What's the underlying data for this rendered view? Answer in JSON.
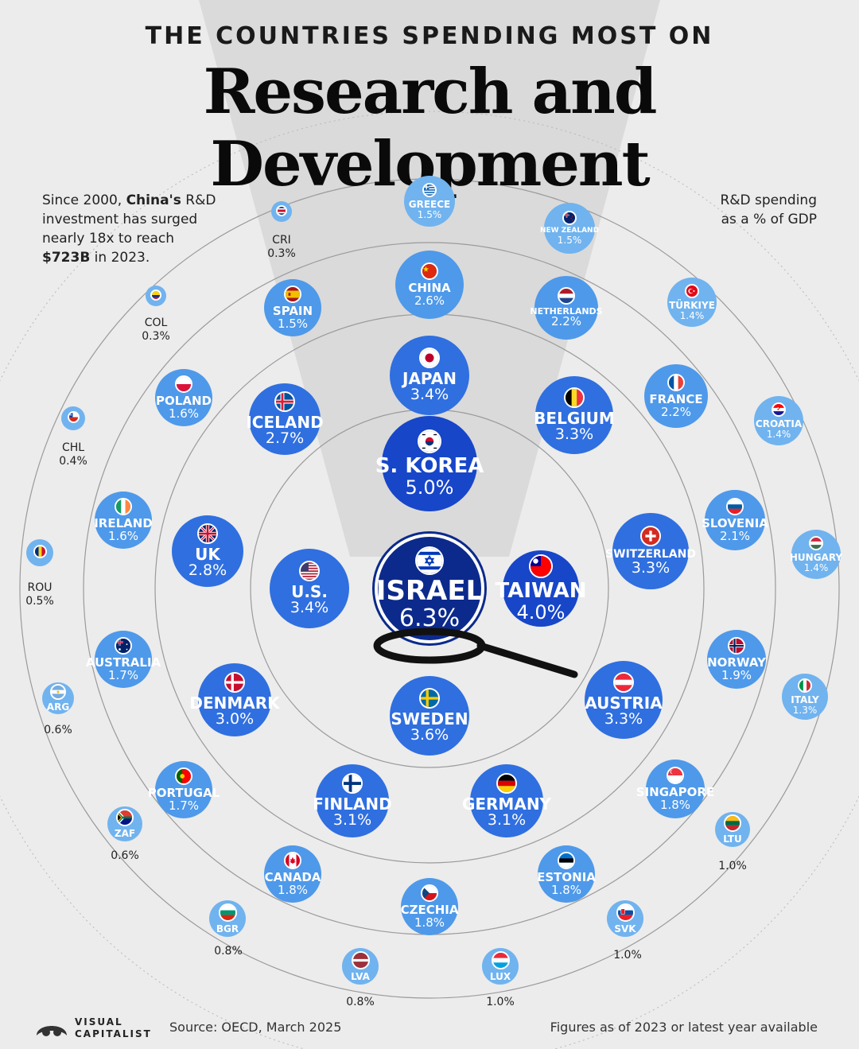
{
  "header": {
    "supertitle": "THE COUNTRIES SPENDING MOST ON",
    "title": "Research and Development"
  },
  "note": {
    "line1a": "Since 2000, ",
    "line1b": "China's",
    "line1c": " R&D",
    "line2": "investment has surged",
    "line3": "nearly 18x to reach",
    "line4a": "$723B",
    "line4b": " in 2023."
  },
  "legend": {
    "line1": "R&D spending",
    "line2": "as a % of GDP"
  },
  "footer": {
    "logo_top": "VISUAL",
    "logo_bottom": "CAPITALIST",
    "source": "Source: OECD, March 2025",
    "figures": "Figures as of 2023 or latest year available"
  },
  "colors": {
    "tier1": "#0c2a8c",
    "tier2": "#1746c9",
    "tier3": "#2f6fe0",
    "tier4": "#4e99ea",
    "tier5": "#70b3ef",
    "background": "#ececec"
  },
  "chart_data": {
    "type": "bubble-radial",
    "title": "Research and Development",
    "unit": "R&D spending as a % of GDP",
    "data": [
      {
        "name": "ISRAEL",
        "value": "6.3%",
        "pct": 6.3,
        "flag": "israel-flag-icon"
      },
      {
        "name": "S. KOREA",
        "value": "5.0%",
        "pct": 5.0,
        "flag": "south-korea-flag-icon"
      },
      {
        "name": "TAIWAN",
        "value": "4.0%",
        "pct": 4.0,
        "flag": "taiwan-flag-icon"
      },
      {
        "name": "U.S.",
        "value": "3.4%",
        "pct": 3.4,
        "flag": "usa-flag-icon"
      },
      {
        "name": "JAPAN",
        "value": "3.4%",
        "pct": 3.4,
        "flag": "japan-flag-icon"
      },
      {
        "name": "SWEDEN",
        "value": "3.6%",
        "pct": 3.6,
        "flag": "sweden-flag-icon"
      },
      {
        "name": "BELGIUM",
        "value": "3.3%",
        "pct": 3.3,
        "flag": "belgium-flag-icon"
      },
      {
        "name": "SWITZERLAND",
        "value": "3.3%",
        "pct": 3.3,
        "flag": "switzerland-flag-icon"
      },
      {
        "name": "AUSTRIA",
        "value": "3.3%",
        "pct": 3.3,
        "flag": "austria-flag-icon"
      },
      {
        "name": "GERMANY",
        "value": "3.1%",
        "pct": 3.1,
        "flag": "germany-flag-icon"
      },
      {
        "name": "FINLAND",
        "value": "3.1%",
        "pct": 3.1,
        "flag": "finland-flag-icon"
      },
      {
        "name": "DENMARK",
        "value": "3.0%",
        "pct": 3.0,
        "flag": "denmark-flag-icon"
      },
      {
        "name": "UK",
        "value": "2.8%",
        "pct": 2.8,
        "flag": "uk-flag-icon"
      },
      {
        "name": "ICELAND",
        "value": "2.7%",
        "pct": 2.7,
        "flag": "iceland-flag-icon"
      },
      {
        "name": "CHINA",
        "value": "2.6%",
        "pct": 2.6,
        "flag": "china-flag-icon"
      },
      {
        "name": "NETHERLANDS",
        "value": "2.2%",
        "pct": 2.2,
        "flag": "netherlands-flag-icon"
      },
      {
        "name": "FRANCE",
        "value": "2.2%",
        "pct": 2.2,
        "flag": "france-flag-icon"
      },
      {
        "name": "SLOVENIA",
        "value": "2.1%",
        "pct": 2.1,
        "flag": "slovenia-flag-icon"
      },
      {
        "name": "NORWAY",
        "value": "1.9%",
        "pct": 1.9,
        "flag": "norway-flag-icon"
      },
      {
        "name": "SINGAPORE",
        "value": "1.8%",
        "pct": 1.8,
        "flag": "singapore-flag-icon"
      },
      {
        "name": "ESTONIA",
        "value": "1.8%",
        "pct": 1.8,
        "flag": "estonia-flag-icon"
      },
      {
        "name": "CZECHIA",
        "value": "1.8%",
        "pct": 1.8,
        "flag": "czechia-flag-icon"
      },
      {
        "name": "CANADA",
        "value": "1.8%",
        "pct": 1.8,
        "flag": "canada-flag-icon"
      },
      {
        "name": "PORTUGAL",
        "value": "1.7%",
        "pct": 1.7,
        "flag": "portugal-flag-icon"
      },
      {
        "name": "AUSTRALIA",
        "value": "1.7%",
        "pct": 1.7,
        "flag": "australia-flag-icon"
      },
      {
        "name": "IRELAND",
        "value": "1.6%",
        "pct": 1.6,
        "flag": "ireland-flag-icon"
      },
      {
        "name": "POLAND",
        "value": "1.6%",
        "pct": 1.6,
        "flag": "poland-flag-icon"
      },
      {
        "name": "SPAIN",
        "value": "1.5%",
        "pct": 1.5,
        "flag": "spain-flag-icon"
      },
      {
        "name": "GREECE",
        "value": "1.5%",
        "pct": 1.5,
        "flag": "greece-flag-icon"
      },
      {
        "name": "NEW ZEALAND",
        "value": "1.5%",
        "pct": 1.5,
        "flag": "new-zealand-flag-icon"
      },
      {
        "name": "TÜRKIYE",
        "value": "1.4%",
        "pct": 1.4,
        "flag": "turkiye-flag-icon"
      },
      {
        "name": "CROATIA",
        "value": "1.4%",
        "pct": 1.4,
        "flag": "croatia-flag-icon"
      },
      {
        "name": "HUNGARY",
        "value": "1.4%",
        "pct": 1.4,
        "flag": "hungary-flag-icon"
      },
      {
        "name": "ITALY",
        "value": "1.3%",
        "pct": 1.3,
        "flag": "italy-flag-icon"
      },
      {
        "name": "LTU",
        "value": "1.0%",
        "pct": 1.0,
        "flag": "lithuania-flag-icon"
      },
      {
        "name": "SVK",
        "value": "1.0%",
        "pct": 1.0,
        "flag": "slovakia-flag-icon"
      },
      {
        "name": "LUX",
        "value": "1.0%",
        "pct": 1.0,
        "flag": "luxembourg-flag-icon"
      },
      {
        "name": "LVA",
        "value": "0.8%",
        "pct": 0.8,
        "flag": "latvia-flag-icon"
      },
      {
        "name": "BGR",
        "value": "0.8%",
        "pct": 0.8,
        "flag": "bulgaria-flag-icon"
      },
      {
        "name": "ZAF",
        "value": "0.6%",
        "pct": 0.6,
        "flag": "south-africa-flag-icon"
      },
      {
        "name": "ARG",
        "value": "0.6%",
        "pct": 0.6,
        "flag": "argentina-flag-icon"
      },
      {
        "name": "ROU",
        "value": "0.5%",
        "pct": 0.5,
        "flag": "romania-flag-icon"
      },
      {
        "name": "CHL",
        "value": "0.4%",
        "pct": 0.4,
        "flag": "chile-flag-icon"
      },
      {
        "name": "COL",
        "value": "0.3%",
        "pct": 0.3,
        "flag": "colombia-flag-icon"
      },
      {
        "name": "CRI",
        "value": "0.3%",
        "pct": 0.3,
        "flag": "costa-rica-flag-icon"
      }
    ]
  }
}
